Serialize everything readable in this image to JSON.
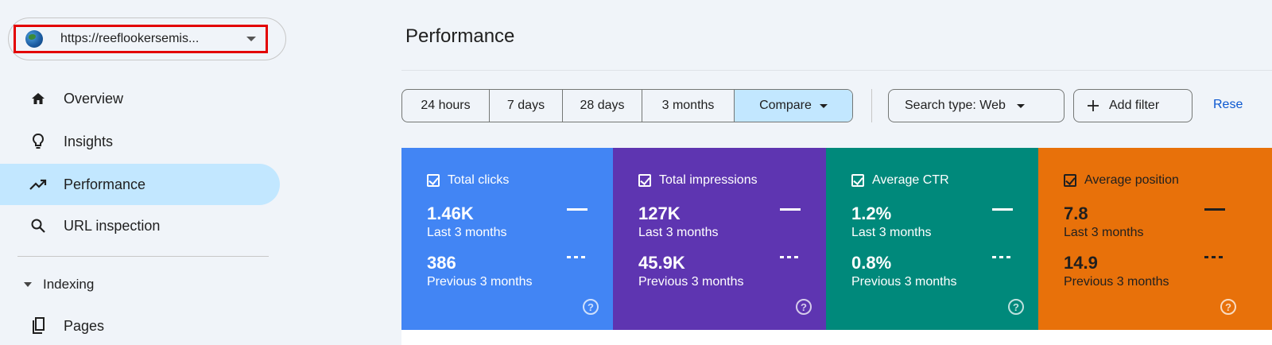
{
  "property": {
    "url": "https://reeflookersemis..."
  },
  "nav": [
    {
      "label": "Overview",
      "icon": "home-icon"
    },
    {
      "label": "Insights",
      "icon": "lightbulb-icon"
    },
    {
      "label": "Performance",
      "icon": "trending-up-icon",
      "active": true
    },
    {
      "label": "URL inspection",
      "icon": "search-icon"
    }
  ],
  "indexing": {
    "label": "Indexing",
    "pages_label": "Pages"
  },
  "header": {
    "title": "Performance"
  },
  "date_range": {
    "options": [
      "24 hours",
      "7 days",
      "28 days",
      "3 months"
    ],
    "compare_label": "Compare"
  },
  "filters": {
    "search_type": "Search type: Web",
    "add_filter": "Add filter",
    "reset": "Rese"
  },
  "metrics": [
    {
      "label": "Total clicks",
      "current": "1.46K",
      "current_period": "Last 3 months",
      "previous": "386",
      "previous_period": "Previous 3 months",
      "color": "#4285f4",
      "text_color": "#ffffff"
    },
    {
      "label": "Total impressions",
      "current": "127K",
      "current_period": "Last 3 months",
      "previous": "45.9K",
      "previous_period": "Previous 3 months",
      "color": "#5e35b1",
      "text_color": "#ffffff"
    },
    {
      "label": "Average CTR",
      "current": "1.2%",
      "current_period": "Last 3 months",
      "previous": "0.8%",
      "previous_period": "Previous 3 months",
      "color": "#00897b",
      "text_color": "#ffffff"
    },
    {
      "label": "Average position",
      "current": "7.8",
      "current_period": "Last 3 months",
      "previous": "14.9",
      "previous_period": "Previous 3 months",
      "color": "#e8710a",
      "text_color": "#1f1f1f"
    }
  ],
  "colors": {
    "accent": "#0b57d0",
    "active_nav": "#c2e7ff",
    "highlight_box": "#e30000"
  }
}
